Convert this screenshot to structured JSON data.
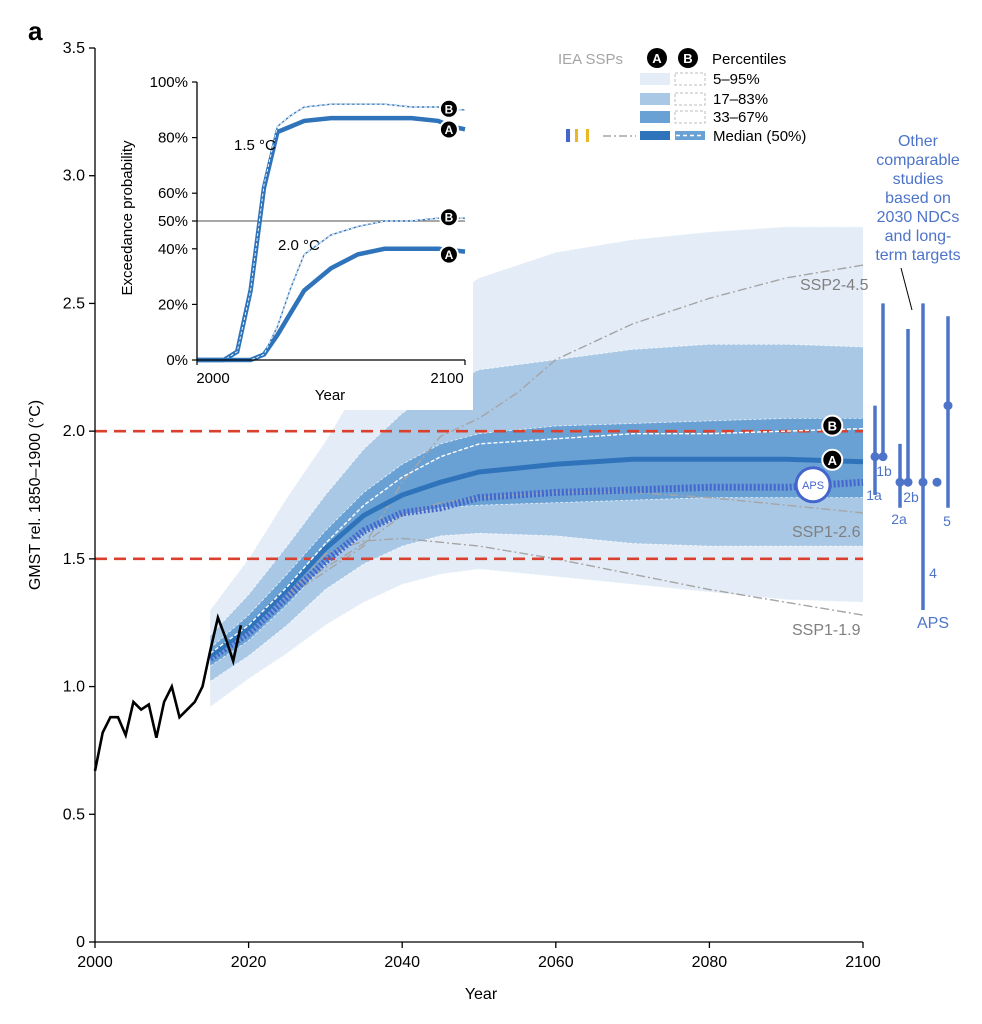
{
  "panel_label": "a",
  "colors": {
    "band_5_95": "#e4edf7",
    "band_17_83": "#a9c8e6",
    "band_33_67": "#6aa1d4",
    "median": "#2f74bb",
    "aps": "#4466cc",
    "other": "#4d74c9",
    "threshold": "#d9412e",
    "historical": "#000000",
    "ssp": "#a5a5a5",
    "gray_label": "#7f7f7f"
  },
  "legend": {
    "iea_ssps": "IEA SSPs",
    "a_badge": "A",
    "b_badge": "B",
    "percentiles": "Percentiles",
    "p5_95": "5–95%",
    "p17_83": "17–83%",
    "p33_67": "33–67%",
    "median": "Median (50%)"
  },
  "labels": {
    "aps_marker": "APS",
    "ssp2_45": "SSP2-4.5",
    "ssp1_26": "SSP1-2.6",
    "ssp1_19": "SSP1-1.9",
    "other_studies_lines": [
      "Other",
      "comparable",
      "studies",
      "based on",
      "2030 NDCs",
      "and long-",
      "term targets"
    ],
    "aps_group": "APS"
  },
  "chart_data": [
    {
      "type": "line",
      "title": "",
      "xlabel": "Year",
      "ylabel": "GMST rel. 1850–1900 (°C)",
      "xlim": [
        2000,
        2100
      ],
      "ylim": [
        0,
        3.5
      ],
      "xticks": [
        2000,
        2020,
        2040,
        2060,
        2080,
        2100
      ],
      "yticks": [
        0,
        0.5,
        1.0,
        1.5,
        2.0,
        2.5,
        3.0,
        3.5
      ],
      "ytick_labels": [
        "0",
        "0.5",
        "1.0",
        "1.5",
        "2.0",
        "2.5",
        "3.0",
        "3.5"
      ],
      "hlines": [
        1.5,
        2.0
      ],
      "x": [
        2015,
        2020,
        2025,
        2030,
        2035,
        2040,
        2045,
        2050,
        2060,
        2070,
        2080,
        2090,
        2100
      ],
      "historical": {
        "x": [
          2000,
          2001,
          2002,
          2003,
          2004,
          2005,
          2006,
          2007,
          2008,
          2009,
          2010,
          2011,
          2012,
          2013,
          2014,
          2015,
          2016,
          2017,
          2018,
          2019
        ],
        "y": [
          0.67,
          0.82,
          0.88,
          0.88,
          0.81,
          0.94,
          0.91,
          0.93,
          0.8,
          0.94,
          1.0,
          0.88,
          0.91,
          0.94,
          1.0,
          1.14,
          1.27,
          1.19,
          1.1,
          1.24
        ]
      },
      "bands": [
        {
          "name": "5–95%",
          "lower": [
            0.92,
            1.03,
            1.13,
            1.24,
            1.33,
            1.4,
            1.44,
            1.46,
            1.43,
            1.4,
            1.37,
            1.34,
            1.33
          ],
          "upper": [
            1.3,
            1.5,
            1.74,
            1.96,
            2.21,
            2.4,
            2.5,
            2.6,
            2.7,
            2.75,
            2.78,
            2.8,
            2.8
          ]
        },
        {
          "name": "17–83%",
          "lower": [
            1.02,
            1.12,
            1.24,
            1.38,
            1.48,
            1.55,
            1.59,
            1.6,
            1.59,
            1.56,
            1.55,
            1.55,
            1.55
          ],
          "upper": [
            1.2,
            1.36,
            1.55,
            1.75,
            1.93,
            2.07,
            2.17,
            2.24,
            2.28,
            2.32,
            2.34,
            2.34,
            2.33
          ]
        },
        {
          "name": "33–67%",
          "lower": [
            1.08,
            1.18,
            1.32,
            1.48,
            1.6,
            1.67,
            1.7,
            1.71,
            1.72,
            1.73,
            1.74,
            1.74,
            1.74
          ],
          "upper": [
            1.15,
            1.28,
            1.44,
            1.61,
            1.76,
            1.87,
            1.95,
            1.99,
            2.02,
            2.03,
            2.04,
            2.05,
            2.05
          ]
        }
      ],
      "series": [
        {
          "name": "A",
          "y": [
            1.12,
            1.23,
            1.38,
            1.54,
            1.67,
            1.75,
            1.8,
            1.84,
            1.87,
            1.89,
            1.89,
            1.89,
            1.88
          ]
        },
        {
          "name": "B",
          "y": [
            1.13,
            1.24,
            1.39,
            1.56,
            1.71,
            1.82,
            1.9,
            1.95,
            1.97,
            1.99,
            1.99,
            2.0,
            2.01
          ]
        },
        {
          "name": "APS",
          "y": [
            1.11,
            1.21,
            1.35,
            1.49,
            1.61,
            1.68,
            1.7,
            1.74,
            1.76,
            1.77,
            1.78,
            1.78,
            1.8
          ]
        }
      ],
      "ssp_lines": [
        {
          "name": "SSP2-4.5",
          "x": [
            2025,
            2035,
            2040,
            2045,
            2050,
            2055,
            2060,
            2070,
            2080,
            2090,
            2100
          ],
          "y": [
            1.35,
            1.55,
            1.8,
            1.98,
            2.05,
            2.15,
            2.28,
            2.42,
            2.52,
            2.6,
            2.65
          ]
        },
        {
          "name": "SSP1-2.6",
          "x": [
            2025,
            2035,
            2040,
            2045,
            2050,
            2060,
            2070,
            2080,
            2090,
            2100
          ],
          "y": [
            1.37,
            1.56,
            1.67,
            1.72,
            1.74,
            1.76,
            1.76,
            1.74,
            1.71,
            1.68
          ]
        },
        {
          "name": "SSP1-1.9",
          "x": [
            2025,
            2030,
            2035,
            2040,
            2050,
            2060,
            2070,
            2080,
            2090,
            2100
          ],
          "y": [
            1.35,
            1.52,
            1.57,
            1.58,
            1.55,
            1.5,
            1.44,
            1.38,
            1.33,
            1.28
          ]
        }
      ],
      "other_studies": [
        {
          "label": "1a",
          "median": 1.9,
          "low": 1.75,
          "high": 2.1
        },
        {
          "label": "1b",
          "median": 1.9,
          "low": 1.9,
          "high": 2.5
        },
        {
          "label": "2a",
          "median": 1.8,
          "low": 1.7,
          "high": 1.95
        },
        {
          "label": "2b",
          "median": 1.8,
          "low": 1.8,
          "high": 2.4
        },
        {
          "label": "4",
          "median": 1.8,
          "low": 1.3,
          "high": 2.5
        },
        {
          "label": "APS",
          "median": 1.8,
          "low": null,
          "high": null
        },
        {
          "label": "5",
          "median": 2.1,
          "low": 1.7,
          "high": 2.45
        }
      ]
    },
    {
      "type": "line",
      "title": "",
      "xlabel": "Year",
      "ylabel": "Exceedance probability",
      "xlim": [
        2000,
        2100
      ],
      "ylim": [
        0,
        100
      ],
      "xticks": [
        2000,
        2100
      ],
      "yticks": [
        0,
        20,
        40,
        50,
        60,
        80,
        100
      ],
      "ytick_labels": [
        "0%",
        "20%",
        "40%",
        "50%",
        "60%",
        "80%",
        "100%"
      ],
      "hline": 50,
      "annotations": [
        "1.5 °C",
        "2.0 °C"
      ],
      "series": [
        {
          "name": "1.5 °C A",
          "x": [
            2000,
            2010,
            2015,
            2020,
            2025,
            2030,
            2035,
            2040,
            2050,
            2060,
            2070,
            2080,
            2090,
            2095,
            2100
          ],
          "y": [
            0,
            0,
            3,
            25,
            62,
            82,
            84,
            86,
            87,
            87,
            87,
            87,
            86,
            84,
            83
          ]
        },
        {
          "name": "1.5 °C B",
          "x": [
            2000,
            2010,
            2015,
            2020,
            2025,
            2030,
            2035,
            2040,
            2050,
            2060,
            2070,
            2080,
            2090,
            2095,
            2100
          ],
          "y": [
            0,
            0,
            3,
            25,
            63,
            84,
            88,
            91,
            92,
            92,
            92,
            91,
            91,
            90,
            90
          ]
        },
        {
          "name": "2.0 °C A",
          "x": [
            2000,
            2020,
            2025,
            2030,
            2035,
            2040,
            2050,
            2060,
            2070,
            2080,
            2090,
            2100
          ],
          "y": [
            0,
            0,
            2,
            9,
            17,
            25,
            33,
            38,
            40,
            40,
            40,
            39
          ]
        },
        {
          "name": "2.0 °C B",
          "x": [
            2000,
            2020,
            2025,
            2030,
            2035,
            2040,
            2050,
            2060,
            2070,
            2080,
            2090,
            2100
          ],
          "y": [
            0,
            0,
            2,
            12,
            26,
            38,
            45,
            48,
            50,
            50,
            51,
            51
          ]
        }
      ]
    }
  ]
}
